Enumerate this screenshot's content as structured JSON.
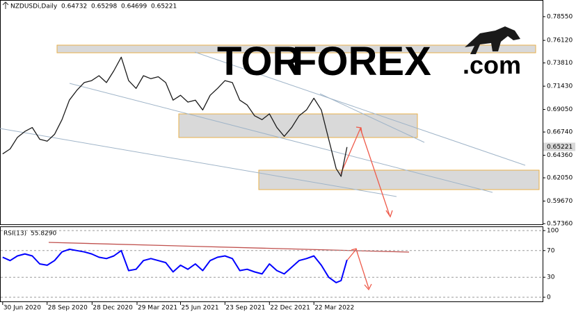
{
  "watermark": [
    "TOR",
    "FOREX",
    ".com"
  ],
  "chart_data": [
    {
      "type": "line",
      "title": "NZDUSDi,Daily",
      "ohlc": [
        0.64732,
        0.65298,
        0.64699,
        0.65221
      ],
      "last_price": 0.65221,
      "x": [
        0,
        15,
        30,
        45,
        60,
        75,
        90,
        105,
        120,
        135,
        150,
        165,
        180,
        195,
        210,
        225,
        240,
        255,
        270,
        285,
        300,
        315,
        330,
        345,
        360,
        375,
        390,
        405,
        420,
        435,
        450,
        465,
        480,
        495,
        510,
        525,
        540,
        555,
        570,
        585,
        600,
        615,
        630,
        645,
        660,
        675,
        685,
        697
      ],
      "series": [
        {
          "name": "NZDUSDi",
          "color": "#1a1a1a",
          "values": [
            0.645,
            0.65,
            0.662,
            0.668,
            0.672,
            0.66,
            0.658,
            0.665,
            0.68,
            0.7,
            0.71,
            0.718,
            0.72,
            0.725,
            0.718,
            0.73,
            0.744,
            0.72,
            0.712,
            0.725,
            0.722,
            0.724,
            0.718,
            0.7,
            0.705,
            0.698,
            0.7,
            0.69,
            0.705,
            0.712,
            0.72,
            0.718,
            0.7,
            0.695,
            0.684,
            0.68,
            0.686,
            0.672,
            0.663,
            0.672,
            0.684,
            0.69,
            0.702,
            0.69,
            0.66,
            0.63,
            0.622,
            0.652
          ]
        }
      ],
      "xlim": [
        -4,
        1093
      ],
      "ylim": [
        0.5729,
        0.8011
      ],
      "yticks": [
        {
          "value": 0.7855,
          "label": "0.78550"
        },
        {
          "value": 0.7612,
          "label": "0.76120"
        },
        {
          "value": 0.7381,
          "label": "0.73810"
        },
        {
          "value": 0.7143,
          "label": "0.71430"
        },
        {
          "value": 0.6905,
          "label": "0.69050"
        },
        {
          "value": 0.6674,
          "label": "0.66740"
        },
        {
          "value": 0.6436,
          "label": "0.64360"
        },
        {
          "value": 0.6205,
          "label": "0.62050"
        },
        {
          "value": 0.5967,
          "label": "0.59670"
        },
        {
          "value": 0.5736,
          "label": "0.57360"
        }
      ],
      "grid": false
    },
    {
      "type": "line",
      "title": "RSI(13)",
      "last": {
        "value": 55.829,
        "label": "55.8290"
      },
      "x": [
        0,
        15,
        30,
        45,
        60,
        75,
        90,
        105,
        120,
        135,
        150,
        165,
        180,
        195,
        210,
        225,
        240,
        255,
        270,
        285,
        300,
        315,
        330,
        345,
        360,
        375,
        390,
        405,
        420,
        435,
        450,
        465,
        480,
        495,
        510,
        525,
        540,
        555,
        570,
        585,
        600,
        615,
        630,
        645,
        660,
        675,
        685,
        697
      ],
      "series": [
        {
          "name": "RSI(13)",
          "color": "#0000ff",
          "values": [
            60,
            55,
            62,
            65,
            62,
            50,
            48,
            55,
            68,
            72,
            70,
            68,
            65,
            60,
            58,
            62,
            70,
            40,
            42,
            55,
            58,
            55,
            52,
            38,
            48,
            42,
            50,
            40,
            55,
            60,
            62,
            58,
            40,
            42,
            38,
            35,
            50,
            40,
            35,
            45,
            55,
            58,
            62,
            48,
            30,
            22,
            25,
            56
          ]
        }
      ],
      "xlim": [
        -4,
        1093
      ],
      "ylim": [
        -7.3,
        105.2
      ],
      "yticks": [
        100,
        70,
        30,
        0
      ],
      "xticks": [
        {
          "value": 0,
          "label": "30 Jun 2020"
        },
        {
          "value": 90,
          "label": "28 Sep 2020"
        },
        {
          "value": 181,
          "label": "28 Dec 2020"
        },
        {
          "value": 272,
          "label": "29 Mar 2021"
        },
        {
          "value": 360,
          "label": "25 Jun 2021"
        },
        {
          "value": 450,
          "label": "23 Sep 2021"
        },
        {
          "value": 540,
          "label": "22 Dec 2021"
        },
        {
          "value": 630,
          "label": "22 Mar 2022"
        }
      ],
      "grid": true
    }
  ]
}
